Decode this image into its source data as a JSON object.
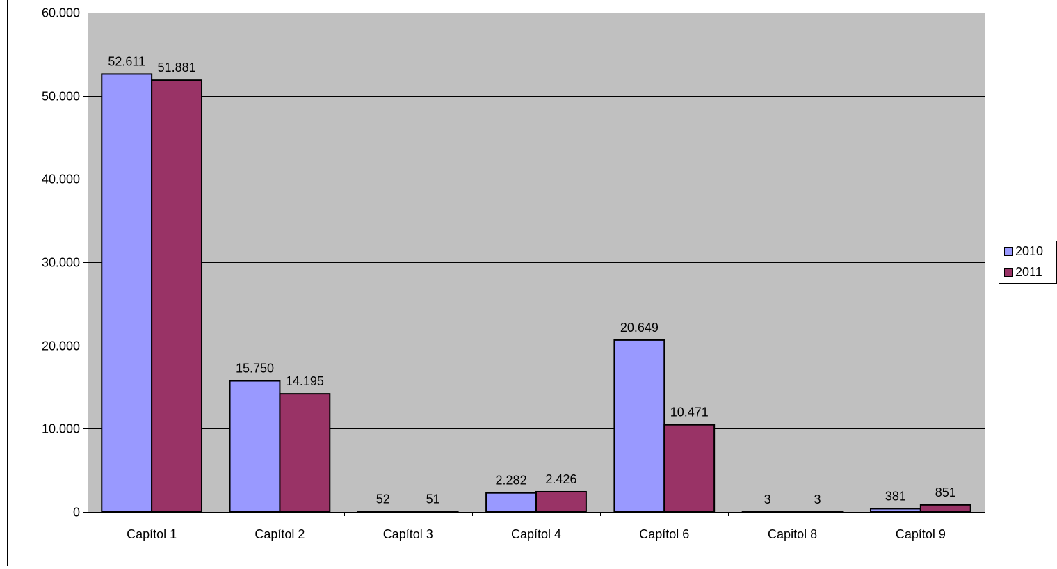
{
  "chart_data": {
    "type": "bar",
    "categories": [
      "Capítol 1",
      "Capítol 2",
      "Capítol 3",
      "Capítol 4",
      "Capítol 6",
      "Capitol 8",
      "Capítol 9"
    ],
    "series": [
      {
        "name": "2010",
        "color": "#9999ff",
        "values": [
          52611,
          15750,
          52,
          2282,
          20649,
          3,
          381
        ],
        "labels": [
          "52.611",
          "15.750",
          "52",
          "2.282",
          "20.649",
          "3",
          "381"
        ]
      },
      {
        "name": "2011",
        "color": "#993366",
        "values": [
          51881,
          14195,
          51,
          2426,
          10471,
          3,
          851
        ],
        "labels": [
          "51.881",
          "14.195",
          "51",
          "2.426",
          "10.471",
          "3",
          "851"
        ]
      }
    ],
    "ylim": [
      0,
      60000
    ],
    "yticks": [
      0,
      10000,
      20000,
      30000,
      40000,
      50000,
      60000
    ],
    "ytick_labels": [
      "0",
      "10.000",
      "20.000",
      "30.000",
      "40.000",
      "50.000",
      "60.000"
    ],
    "plot_background": "#c0c0c0",
    "grid": true,
    "legend_position": "right"
  }
}
